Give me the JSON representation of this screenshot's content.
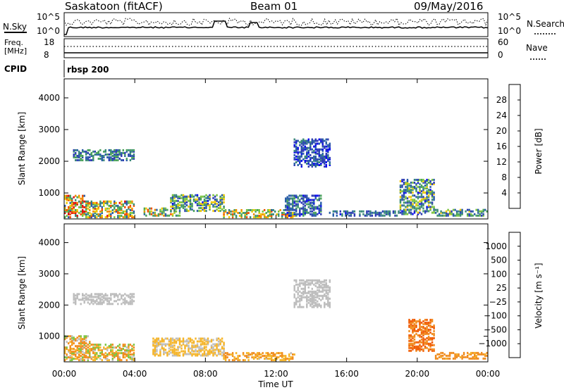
{
  "header": {
    "station": "Saskatoon (fitACF)",
    "beam": "Beam 01",
    "date": "09/May/2016"
  },
  "panels": {
    "nsky_label": "N.Sky",
    "nsky_ticks": [
      "10^5",
      "10^0"
    ],
    "nsearch_label": "N.Search",
    "nsearch_ticks": [
      "10^5",
      "10^0"
    ],
    "freq_label_1": "Freq.",
    "freq_label_2": "[MHz]",
    "freq_ticks": [
      "18",
      "8"
    ],
    "nave_label": "Nave",
    "nave_ticks": [
      "60",
      "0"
    ],
    "cpid_label": "CPID",
    "cpid_text": "rbsp 200"
  },
  "colors": {
    "power": [
      "#0a0af0",
      "#2e3cb4",
      "#2b5fa8",
      "#3b8a78",
      "#4aa35a",
      "#7cc540",
      "#f0c800",
      "#f08c00",
      "#f05000",
      "#e01010"
    ],
    "velocity": [
      "#e01010",
      "#f05a00",
      "#f08c1e",
      "#f5b428",
      "#bdbdbd",
      "#7cc540",
      "#3f9a50",
      "#2e6fb4",
      "#1a3cb4"
    ]
  },
  "chart_data": [
    {
      "type": "heatmap",
      "quantity": "Power",
      "ylabel": "Slant Range [km]",
      "xlabel": "Time UT",
      "xticks": [
        "00:00",
        "04:00",
        "08:00",
        "12:00",
        "16:00",
        "20:00",
        "00:00"
      ],
      "yticks": [
        "1000",
        "2000",
        "3000",
        "4000"
      ],
      "ylim": [
        180,
        4600
      ],
      "xlim_hours": [
        0,
        24
      ],
      "colorbar": {
        "label": "Power [dB]",
        "ticks": [
          "4",
          "8",
          "12",
          "16",
          "20",
          "24",
          "28"
        ],
        "range": [
          0,
          32
        ]
      },
      "regions": [
        {
          "t": [
            0.0,
            1.2
          ],
          "r": [
            200,
            900
          ],
          "level": 20,
          "spread": 12
        },
        {
          "t": [
            1.2,
            4.0
          ],
          "r": [
            200,
            700
          ],
          "level": 18,
          "spread": 12
        },
        {
          "t": [
            0.5,
            4.0
          ],
          "r": [
            2000,
            2350
          ],
          "level": 10,
          "spread": 6
        },
        {
          "t": [
            4.5,
            6.5
          ],
          "r": [
            250,
            500
          ],
          "level": 18,
          "spread": 10
        },
        {
          "t": [
            6.0,
            9.0
          ],
          "r": [
            400,
            900
          ],
          "level": 12,
          "spread": 10
        },
        {
          "t": [
            9.0,
            13.0
          ],
          "r": [
            200,
            450
          ],
          "level": 18,
          "spread": 10
        },
        {
          "t": [
            12.5,
            14.5
          ],
          "r": [
            250,
            900
          ],
          "level": 8,
          "spread": 6
        },
        {
          "t": [
            13.0,
            15.0
          ],
          "r": [
            1800,
            2700
          ],
          "level": 6,
          "spread": 5
        },
        {
          "t": [
            15.0,
            19.0
          ],
          "r": [
            250,
            400
          ],
          "level": 8,
          "spread": 5
        },
        {
          "t": [
            19.0,
            21.0
          ],
          "r": [
            300,
            1400
          ],
          "level": 12,
          "spread": 10
        },
        {
          "t": [
            21.0,
            24.0
          ],
          "r": [
            250,
            450
          ],
          "level": 12,
          "spread": 8
        }
      ]
    },
    {
      "type": "heatmap",
      "quantity": "Velocity",
      "ylabel": "Slant Range [km]",
      "xlabel": "Time UT",
      "xticks": [
        "00:00",
        "04:00",
        "08:00",
        "12:00",
        "16:00",
        "20:00",
        "00:00"
      ],
      "yticks": [
        "1000",
        "2000",
        "3000",
        "4000"
      ],
      "ylim": [
        180,
        4600
      ],
      "xlim_hours": [
        0,
        24
      ],
      "colorbar": {
        "label": "Velocity [m s⁻¹]",
        "ticks": [
          "1000",
          "500",
          "100",
          "25",
          "−25",
          "−100",
          "−500",
          "−1000"
        ]
      },
      "regions": [
        {
          "t": [
            0.0,
            1.5
          ],
          "r": [
            200,
            1000
          ],
          "vel": -100,
          "spread": 200
        },
        {
          "t": [
            1.5,
            4.0
          ],
          "r": [
            200,
            700
          ],
          "vel": -50,
          "spread": 150
        },
        {
          "t": [
            0.5,
            4.0
          ],
          "r": [
            2000,
            2350
          ],
          "vel": 0,
          "spread": 20
        },
        {
          "t": [
            5.0,
            9.0
          ],
          "r": [
            350,
            900
          ],
          "vel": -40,
          "spread": 60
        },
        {
          "t": [
            9.0,
            13.0
          ],
          "r": [
            200,
            450
          ],
          "vel": -100,
          "spread": 80
        },
        {
          "t": [
            13.0,
            15.0
          ],
          "r": [
            1900,
            2800
          ],
          "vel": 0,
          "spread": 15
        },
        {
          "t": [
            19.5,
            21.0
          ],
          "r": [
            500,
            1500
          ],
          "vel": -500,
          "spread": 300
        },
        {
          "t": [
            21.0,
            24.0
          ],
          "r": [
            250,
            450
          ],
          "vel": -150,
          "spread": 80
        }
      ]
    }
  ]
}
